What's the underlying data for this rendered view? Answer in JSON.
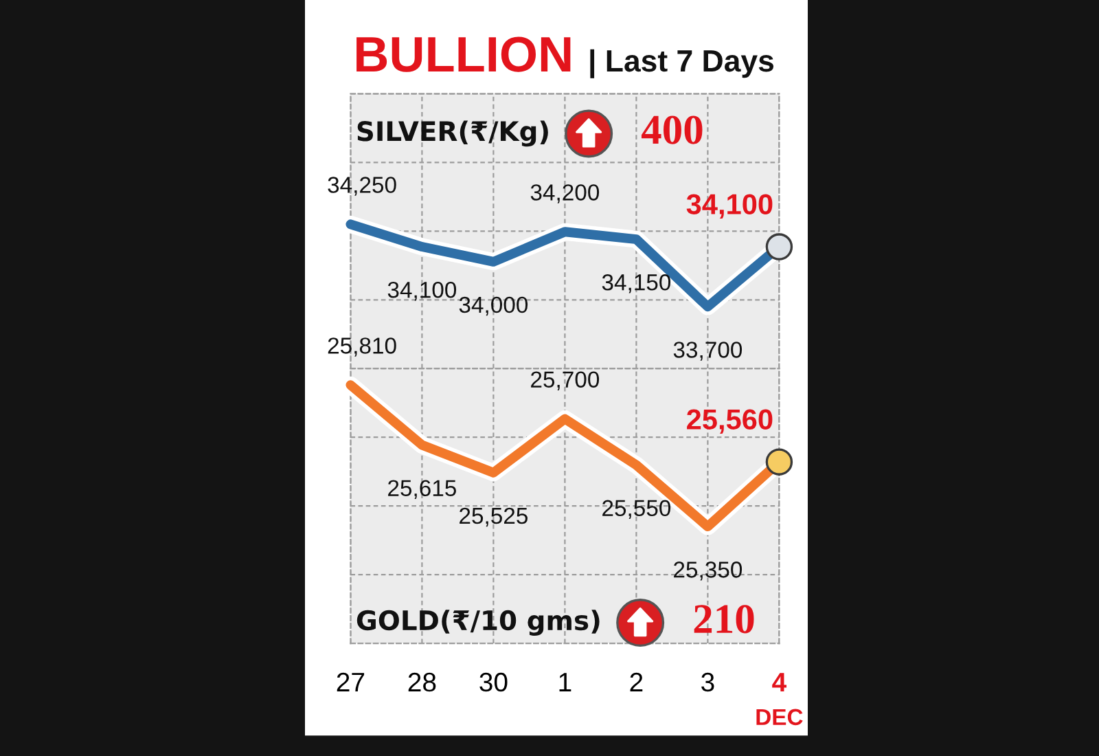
{
  "chart_data": [
    {
      "type": "line",
      "title": "BULLION",
      "subtitle": "| Last 7 Days",
      "categories": [
        "27",
        "28",
        "30",
        "1",
        "2",
        "3",
        "4"
      ],
      "series": [
        {
          "name": "SILVER(₹/Kg)",
          "color": "#2f6fa7",
          "values": [
            34250,
            34100,
            34000,
            34200,
            34150,
            33700,
            34100
          ],
          "value_labels": [
            "34,250",
            "34,100",
            "34,000",
            "34,200",
            "34,150",
            "33,700",
            "34,100"
          ]
        }
      ],
      "annotations": [
        "400"
      ],
      "grid": true,
      "tick_labels": false,
      "line_style": "solid"
    },
    {
      "type": "line",
      "categories": [
        "27",
        "28",
        "30",
        "1",
        "2",
        "3",
        "4"
      ],
      "series": [
        {
          "name": "GOLD(₹/10 gms)",
          "color": "#f2792b",
          "values": [
            25810,
            25615,
            25525,
            25700,
            25550,
            25350,
            25560
          ],
          "value_labels": [
            "25,810",
            "25,615",
            "25,525",
            "25,700",
            "25,550",
            "25,350",
            "25,560"
          ]
        }
      ],
      "annotations": [
        "210",
        "DEC"
      ],
      "grid": true,
      "tick_labels": "x",
      "line_style": "solid"
    }
  ]
}
